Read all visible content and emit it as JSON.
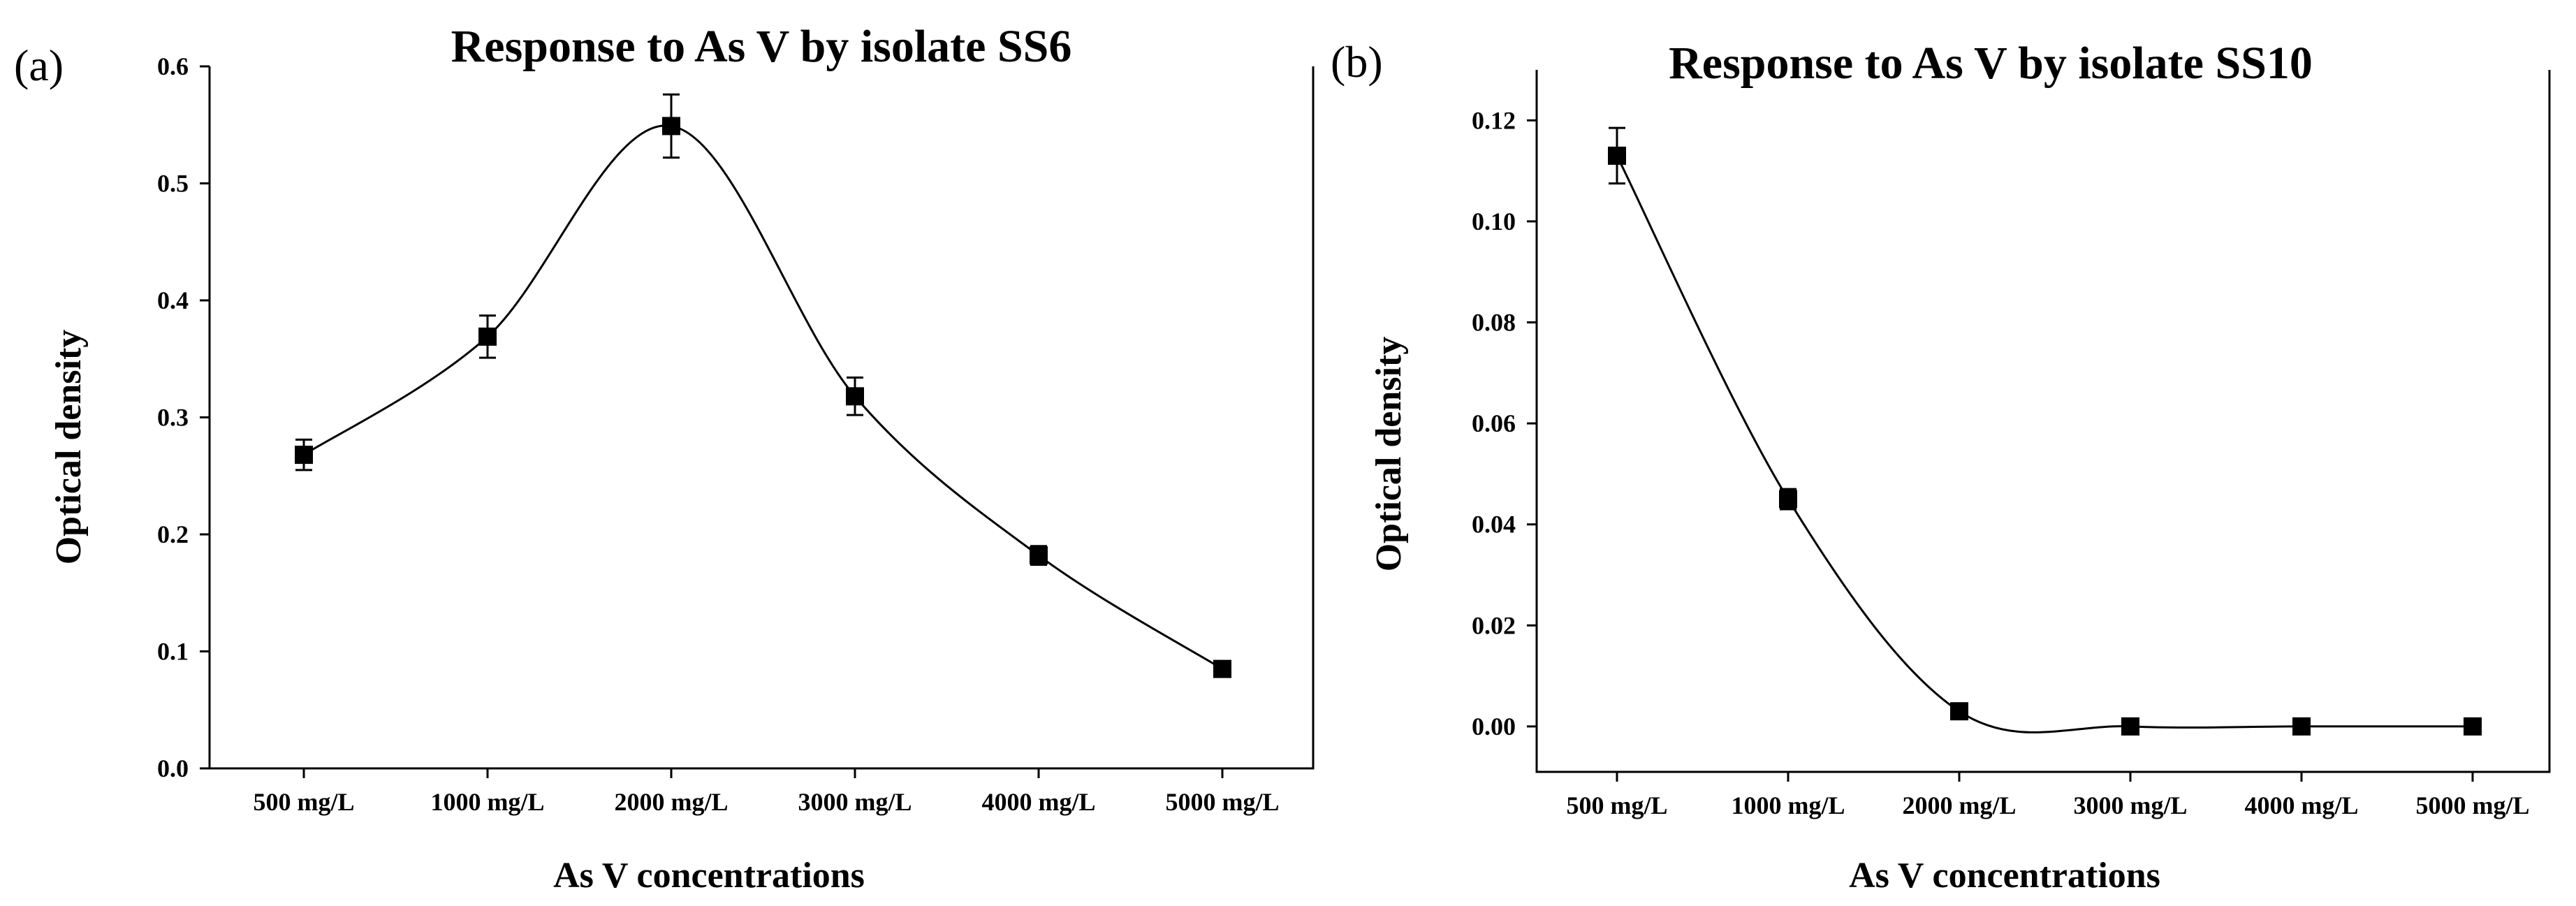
{
  "chart_data": [
    {
      "type": "line",
      "panel": "(a)",
      "title": "Response to As V by isolate SS6",
      "xlabel": "As V concentrations",
      "ylabel": "Optical density",
      "categories": [
        "500 mg/L",
        "1000 mg/L",
        "2000 mg/L",
        "3000 mg/L",
        "4000 mg/L",
        "5000 mg/L"
      ],
      "values": [
        0.268,
        0.369,
        0.549,
        0.318,
        0.182,
        0.085
      ],
      "errors": [
        0.013,
        0.018,
        0.027,
        0.016,
        0.008,
        0.004
      ],
      "ylim": [
        0.0,
        0.6
      ],
      "yticks": [
        "0.0",
        "0.1",
        "0.2",
        "0.3",
        "0.4",
        "0.5",
        "0.6"
      ],
      "grid": false
    },
    {
      "type": "line",
      "panel": "(b)",
      "title": "Response to As V by isolate SS10",
      "xlabel": "As V concentrations",
      "ylabel": "Optical density",
      "categories": [
        "500 mg/L",
        "1000 mg/L",
        "2000 mg/L",
        "3000 mg/L",
        "4000 mg/L",
        "5000 mg/L"
      ],
      "values": [
        0.113,
        0.045,
        0.003,
        0.0,
        0.0,
        0.0
      ],
      "errors": [
        0.0055,
        0.002,
        0.0005,
        0.0003,
        0.0003,
        0.0003
      ],
      "ylim": [
        -0.009,
        0.13
      ],
      "yticks": [
        "0.00",
        "0.02",
        "0.04",
        "0.06",
        "0.08",
        "0.10",
        "0.12"
      ],
      "grid": false
    }
  ]
}
